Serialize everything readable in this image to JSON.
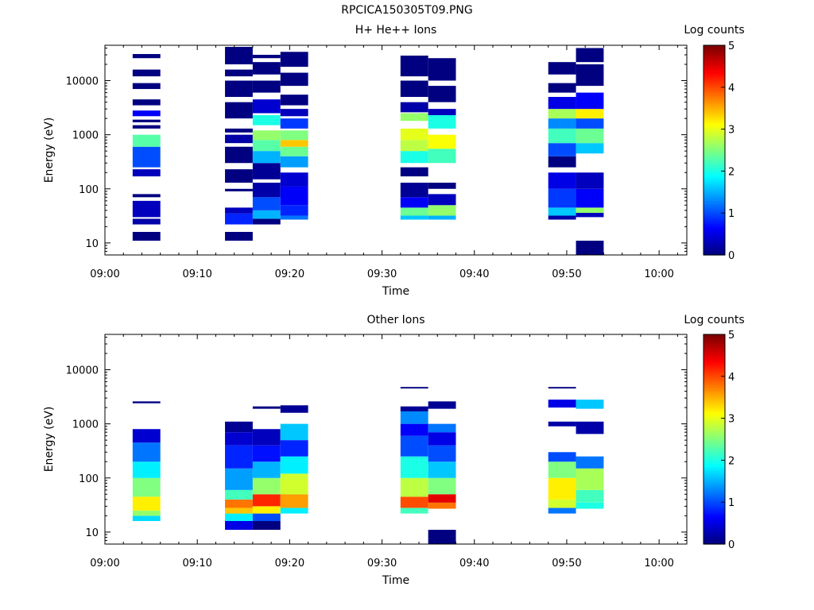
{
  "page_title": "RPCICA150305T09.PNG",
  "chart_data": [
    {
      "type": "heatmap",
      "title": "H+ He++ Ions",
      "xlabel": "Time",
      "ylabel": "Energy (eV)",
      "x_ticks": [
        "09:00",
        "09:10",
        "09:20",
        "09:30",
        "09:40",
        "09:50",
        "10:00"
      ],
      "xlim": [
        "09:00",
        "10:03"
      ],
      "y_scale": "log",
      "y_ticks": [
        10,
        100,
        1000,
        10000
      ],
      "ylim": [
        6,
        45000
      ],
      "colorbar": {
        "label": "Log counts",
        "range": [
          0,
          5
        ],
        "ticks": [
          0,
          1,
          2,
          3,
          4,
          5
        ]
      },
      "columns": [
        {
          "start": "09:03",
          "end": "09:06",
          "bands": [
            [
              11,
              16,
              0
            ],
            [
              22,
              28,
              0.2
            ],
            [
              30,
              60,
              0.3
            ],
            [
              70,
              80,
              0
            ],
            [
              170,
              230,
              0.3
            ],
            [
              250,
              600,
              1.0
            ],
            [
              600,
              1000,
              2.3
            ],
            [
              1300,
              1500,
              0
            ],
            [
              1700,
              1900,
              0
            ],
            [
              2200,
              2800,
              0.6
            ],
            [
              3500,
              4500,
              0
            ],
            [
              7000,
              9000,
              0
            ],
            [
              12000,
              16000,
              0
            ],
            [
              26000,
              31000,
              0
            ]
          ]
        },
        {
          "start": "09:13",
          "end": "09:16",
          "bands": [
            [
              11,
              16,
              0
            ],
            [
              22,
              35,
              0.8
            ],
            [
              35,
              45,
              0.3
            ],
            [
              90,
              100,
              0
            ],
            [
              130,
              230,
              0
            ],
            [
              300,
              600,
              0
            ],
            [
              700,
              1000,
              0.2
            ],
            [
              1100,
              1300,
              0
            ],
            [
              2000,
              4000,
              0
            ],
            [
              5000,
              10000,
              0
            ],
            [
              12000,
              16000,
              0
            ],
            [
              20000,
              42000,
              0
            ]
          ]
        },
        {
          "start": "09:16",
          "end": "09:19",
          "bands": [
            [
              22,
              28,
              0
            ],
            [
              28,
              40,
              1.5
            ],
            [
              40,
              70,
              1.0
            ],
            [
              70,
              130,
              0.2
            ],
            [
              150,
              300,
              0.1
            ],
            [
              300,
              500,
              1.5
            ],
            [
              500,
              800,
              2.3
            ],
            [
              800,
              1200,
              2.6
            ],
            [
              1500,
              2300,
              2.0
            ],
            [
              2500,
              4500,
              0.4
            ],
            [
              6000,
              10000,
              0
            ],
            [
              13000,
              22000,
              0
            ],
            [
              26000,
              30000,
              0
            ]
          ]
        },
        {
          "start": "09:19",
          "end": "09:22",
          "bands": [
            [
              27,
              32,
              1.2
            ],
            [
              32,
              50,
              0.8
            ],
            [
              50,
              110,
              0.6
            ],
            [
              110,
              200,
              0.4
            ],
            [
              250,
              400,
              1.4
            ],
            [
              400,
              600,
              2.4
            ],
            [
              600,
              800,
              3.4
            ],
            [
              800,
              1200,
              2.5
            ],
            [
              1300,
              2000,
              0.9
            ],
            [
              2200,
              3000,
              0.3
            ],
            [
              3500,
              5500,
              0
            ],
            [
              8000,
              14000,
              0
            ],
            [
              18000,
              34000,
              0
            ]
          ]
        },
        {
          "start": "09:32",
          "end": "09:35",
          "bands": [
            [
              27,
              32,
              1.6
            ],
            [
              32,
              45,
              2.4
            ],
            [
              45,
              70,
              0.6
            ],
            [
              70,
              130,
              0.1
            ],
            [
              170,
              250,
              0
            ],
            [
              300,
              500,
              2.0
            ],
            [
              500,
              800,
              2.8
            ],
            [
              800,
              1300,
              3.0
            ],
            [
              1800,
              2500,
              2.6
            ],
            [
              2600,
              4000,
              0.2
            ],
            [
              5000,
              10000,
              0
            ],
            [
              12000,
              29000,
              0
            ]
          ]
        },
        {
          "start": "09:35",
          "end": "09:38",
          "bands": [
            [
              27,
              32,
              1.5
            ],
            [
              32,
              50,
              2.6
            ],
            [
              50,
              80,
              0.3
            ],
            [
              100,
              130,
              0
            ],
            [
              300,
              550,
              2.2
            ],
            [
              550,
              1000,
              3.1
            ],
            [
              1300,
              2300,
              2.0
            ],
            [
              2300,
              3000,
              0.3
            ],
            [
              4000,
              8000,
              0
            ],
            [
              10000,
              26000,
              0
            ]
          ]
        },
        {
          "start": "09:48",
          "end": "09:51",
          "bands": [
            [
              27,
              32,
              0.2
            ],
            [
              32,
              45,
              1.6
            ],
            [
              45,
              100,
              0.9
            ],
            [
              100,
              200,
              0.5
            ],
            [
              250,
              400,
              0
            ],
            [
              400,
              700,
              1.0
            ],
            [
              700,
              1300,
              2.2
            ],
            [
              1300,
              2000,
              1.3
            ],
            [
              2000,
              3000,
              2.7
            ],
            [
              3000,
              5000,
              0.5
            ],
            [
              6000,
              9000,
              0
            ],
            [
              13000,
              22000,
              0
            ]
          ]
        },
        {
          "start": "09:51",
          "end": "09:54",
          "bands": [
            [
              6,
              11,
              0
            ],
            [
              30,
              36,
              0.3
            ],
            [
              36,
              45,
              2.6
            ],
            [
              45,
              100,
              0.6
            ],
            [
              100,
              200,
              0.3
            ],
            [
              450,
              700,
              1.6
            ],
            [
              700,
              1300,
              2.4
            ],
            [
              1300,
              2000,
              1.0
            ],
            [
              2000,
              3000,
              3.2
            ],
            [
              3000,
              6000,
              0.6
            ],
            [
              8000,
              20000,
              0
            ],
            [
              22000,
              40000,
              0
            ]
          ]
        }
      ]
    },
    {
      "type": "heatmap",
      "title": "Other Ions",
      "xlabel": "Time",
      "ylabel": "Energy (eV)",
      "x_ticks": [
        "09:00",
        "09:10",
        "09:20",
        "09:30",
        "09:40",
        "09:50",
        "10:00"
      ],
      "xlim": [
        "09:00",
        "10:03"
      ],
      "y_scale": "log",
      "y_ticks": [
        10,
        100,
        1000,
        10000
      ],
      "ylim": [
        6,
        45000
      ],
      "colorbar": {
        "label": "Log counts",
        "range": [
          0,
          5
        ],
        "ticks": [
          0,
          1,
          2,
          3,
          4,
          5
        ]
      },
      "columns": [
        {
          "start": "09:03",
          "end": "09:06",
          "bands": [
            [
              16,
              20,
              1.7
            ],
            [
              20,
              25,
              2.6
            ],
            [
              25,
              45,
              3.2
            ],
            [
              45,
              100,
              2.5
            ],
            [
              100,
              200,
              1.8
            ],
            [
              200,
              450,
              1.2
            ],
            [
              450,
              800,
              0.4
            ],
            [
              2400,
              2600,
              0
            ]
          ]
        },
        {
          "start": "09:13",
          "end": "09:16",
          "bands": [
            [
              11,
              16,
              0.5
            ],
            [
              16,
              22,
              1.8
            ],
            [
              22,
              28,
              3.4
            ],
            [
              28,
              40,
              3.8
            ],
            [
              40,
              60,
              2.2
            ],
            [
              60,
              150,
              1.4
            ],
            [
              150,
              400,
              0.8
            ],
            [
              400,
              700,
              0.4
            ],
            [
              700,
              1100,
              0.1
            ]
          ]
        },
        {
          "start": "09:16",
          "end": "09:19",
          "bands": [
            [
              11,
              16,
              0
            ],
            [
              16,
              22,
              1.0
            ],
            [
              22,
              30,
              3.2
            ],
            [
              30,
              50,
              4.2
            ],
            [
              50,
              100,
              2.6
            ],
            [
              100,
              200,
              1.5
            ],
            [
              200,
              400,
              0.7
            ],
            [
              400,
              800,
              0.3
            ],
            [
              1900,
              2100,
              0
            ]
          ]
        },
        {
          "start": "09:19",
          "end": "09:22",
          "bands": [
            [
              22,
              28,
              1.8
            ],
            [
              28,
              50,
              3.6
            ],
            [
              50,
              120,
              2.9
            ],
            [
              120,
              250,
              1.8
            ],
            [
              250,
              500,
              0.8
            ],
            [
              500,
              1000,
              1.6
            ],
            [
              1600,
              2200,
              0.1
            ]
          ]
        },
        {
          "start": "09:32",
          "end": "09:35",
          "bands": [
            [
              22,
              28,
              2.2
            ],
            [
              28,
              45,
              4.0
            ],
            [
              45,
              100,
              2.8
            ],
            [
              100,
              250,
              2.0
            ],
            [
              250,
              600,
              1.0
            ],
            [
              600,
              1000,
              0.6
            ],
            [
              1000,
              1700,
              1.3
            ],
            [
              1700,
              2100,
              0.1
            ],
            [
              4500,
              4800,
              0
            ]
          ]
        },
        {
          "start": "09:35",
          "end": "09:38",
          "bands": [
            [
              6,
              11,
              0
            ],
            [
              27,
              35,
              3.8
            ],
            [
              35,
              50,
              4.5
            ],
            [
              50,
              100,
              2.5
            ],
            [
              100,
              200,
              1.6
            ],
            [
              200,
              400,
              1.0
            ],
            [
              400,
              700,
              0.5
            ],
            [
              700,
              1000,
              1.2
            ],
            [
              1900,
              2600,
              0.1
            ]
          ]
        },
        {
          "start": "09:48",
          "end": "09:51",
          "bands": [
            [
              22,
              28,
              1.2
            ],
            [
              28,
              40,
              2.9
            ],
            [
              40,
              100,
              3.2
            ],
            [
              100,
              200,
              2.5
            ],
            [
              200,
              300,
              1.0
            ],
            [
              900,
              1100,
              0.2
            ],
            [
              2000,
              2800,
              0.5
            ],
            [
              4500,
              4800,
              0
            ]
          ]
        },
        {
          "start": "09:51",
          "end": "09:54",
          "bands": [
            [
              27,
              35,
              2.0
            ],
            [
              35,
              60,
              2.2
            ],
            [
              60,
              150,
              2.7
            ],
            [
              150,
              250,
              1.2
            ],
            [
              650,
              1100,
              0.2
            ],
            [
              1900,
              2800,
              1.6
            ]
          ]
        }
      ]
    }
  ]
}
